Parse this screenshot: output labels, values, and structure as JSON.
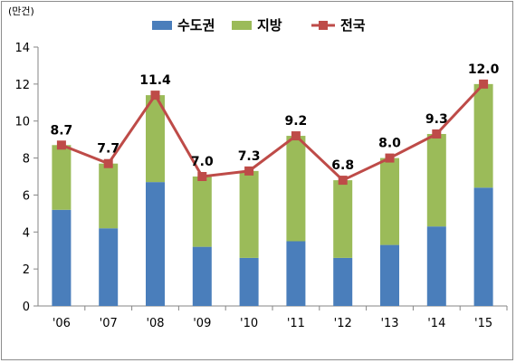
{
  "chart_data": {
    "type": "bar",
    "unit_label": "(만건)",
    "categories": [
      "'06",
      "'07",
      "'08",
      "'09",
      "'10",
      "'11",
      "'12",
      "'13",
      "'14",
      "'15"
    ],
    "ylim": [
      0,
      14
    ],
    "yticks": [
      0,
      2,
      4,
      6,
      8,
      10,
      12,
      14
    ],
    "stacked": true,
    "series": [
      {
        "name": "수도권",
        "type": "bar",
        "color": "#4a7ebb",
        "values": [
          5.2,
          4.2,
          6.7,
          3.2,
          2.6,
          3.5,
          2.6,
          3.3,
          4.3,
          6.4
        ]
      },
      {
        "name": "지방",
        "type": "bar",
        "color": "#9bbb59",
        "values": [
          3.5,
          3.5,
          4.7,
          3.8,
          4.7,
          5.7,
          4.2,
          4.7,
          5.0,
          5.6
        ]
      },
      {
        "name": "전국",
        "type": "line",
        "color": "#be4b48",
        "values": [
          8.7,
          7.7,
          11.4,
          7.0,
          7.3,
          9.2,
          6.8,
          8.0,
          9.3,
          12.0
        ]
      }
    ],
    "data_labels": [
      "8.7",
      "7.7",
      "11.4",
      "7.0",
      "7.3",
      "9.2",
      "6.8",
      "8.0",
      "9.3",
      "12.0"
    ],
    "legend_position": "top"
  }
}
